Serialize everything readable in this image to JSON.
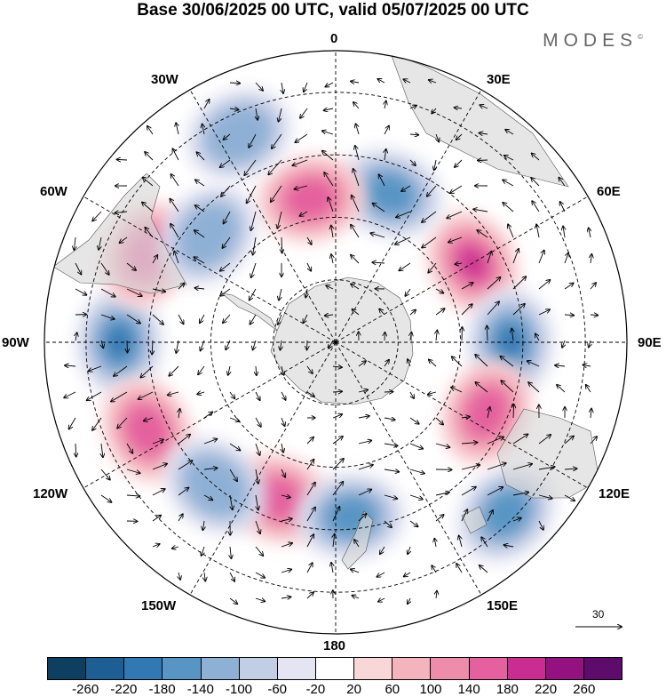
{
  "title": "Base 30/06/2025 00 UTC, valid 05/07/2025 00 UTC",
  "brand": "MODES",
  "brand_mark": "©",
  "map_labels": {
    "top": "0",
    "bottom": "180",
    "left": "90W",
    "right": "90E",
    "nw30": "30W",
    "ne30": "30E",
    "w60": "60W",
    "e60": "60E",
    "w120": "120W",
    "e120": "120E",
    "sw150": "150W",
    "se150": "150E"
  },
  "vector_scale": {
    "label": "30"
  },
  "colorbar": {
    "colors": [
      "#0f3f60",
      "#1d5e95",
      "#3278b3",
      "#5895c4",
      "#8fb0d5",
      "#c2cde6",
      "#e4e4f2",
      "#ffffff",
      "#f9d6d8",
      "#f4b4be",
      "#ee8cab",
      "#e4609e",
      "#c92d91",
      "#94127f",
      "#5e0c6c"
    ],
    "ticks": [
      "-260",
      "-220",
      "-180",
      "-140",
      "-100",
      "-60",
      "-20",
      "20",
      "60",
      "100",
      "140",
      "180",
      "220",
      "260"
    ]
  },
  "anomalies": [
    {
      "type": "positive",
      "level": 4,
      "lat": -52,
      "lon": 60
    },
    {
      "type": "negative",
      "level": 4,
      "lat": -48,
      "lon": 90
    },
    {
      "type": "negative",
      "level": 4,
      "lat": -38,
      "lon": -90
    },
    {
      "type": "negative",
      "level": 3,
      "lat": -52,
      "lon": 20
    },
    {
      "type": "positive",
      "level": 3,
      "lat": -55,
      "lon": -10
    },
    {
      "type": "positive",
      "level": 3,
      "lat": -40,
      "lon": -65
    },
    {
      "type": "negative",
      "level": 2,
      "lat": -50,
      "lon": -50
    },
    {
      "type": "positive",
      "level": 3,
      "lat": -40,
      "lon": -115
    },
    {
      "type": "positive",
      "level": 3,
      "lat": -50,
      "lon": -160
    },
    {
      "type": "negative",
      "level": 2,
      "lat": -45,
      "lon": -140
    },
    {
      "type": "negative",
      "level": 3,
      "lat": -48,
      "lon": 175
    },
    {
      "type": "negative",
      "level": 3,
      "lat": -32,
      "lon": 135
    },
    {
      "type": "positive",
      "level": 3,
      "lat": -50,
      "lon": 115
    },
    {
      "type": "negative",
      "level": 2,
      "lat": -35,
      "lon": -25
    }
  ]
}
